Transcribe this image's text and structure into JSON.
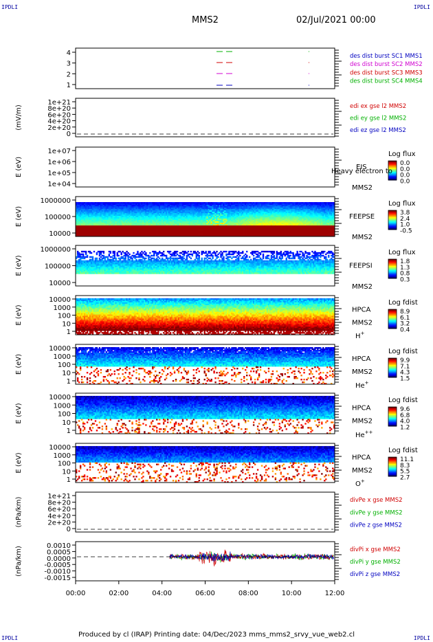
{
  "corners": {
    "tl": "IPDLI",
    "tr": "IPDLI",
    "bl": "IPDLI",
    "br": "IPDLI"
  },
  "header": {
    "title": "MMS2",
    "datetime": "02/Jul/2021 00:00"
  },
  "footer": {
    "text": "Produced by cl (IRAP)   Printing date: 04/Dec/2023   mms_mms2_srvy_vue_web2.cl"
  },
  "chart_data": {
    "type": "line",
    "x_range_hours": [
      0,
      12
    ],
    "x_ticks": [
      "00:00",
      "02:00",
      "04:00",
      "06:00",
      "08:00",
      "10:00",
      "12:00"
    ],
    "panels": [
      {
        "id": "burst",
        "type": "line",
        "ylabel": "",
        "yticks": [
          "4",
          "3",
          "2",
          "1"
        ],
        "legend": [
          {
            "text": "des dist burst SC1 MMS1",
            "color": "#0000c0"
          },
          {
            "text": "des dist burst SC2 MMS2",
            "color": "#d000d0"
          },
          {
            "text": "des dist burst SC3 MMS3",
            "color": "#d00000"
          },
          {
            "text": "des dist burst SC4 MMS4",
            "color": "#00b000"
          }
        ]
      },
      {
        "id": "edi",
        "type": "line",
        "ylabel": "(mV/m)",
        "yticks": [
          "1e+21",
          "8e+20",
          "6e+20",
          "4e+20",
          "2e+20",
          "0"
        ],
        "legend": [
          {
            "text": "edi ex gse l2 MMS2",
            "color": "#d00000"
          },
          {
            "text": "edi ey gse l2 MMS2",
            "color": "#00b000"
          },
          {
            "text": "edi ez gse l2 MMS2",
            "color": "#0000c0"
          }
        ]
      },
      {
        "id": "eis",
        "type": "heatmap",
        "ylabel": "E (eV)",
        "yticks": [
          "1e+07",
          "1e+06",
          "1e+05",
          "1e+04"
        ],
        "labels": [
          "EIS",
          "MMS2"
        ],
        "overlay_text": "Heavy electron to",
        "cb_title": "Log flux",
        "cb_ticks": [
          "0.0",
          "0.0",
          "0.0",
          "0.0"
        ]
      },
      {
        "id": "feepse",
        "type": "heatmap",
        "ylabel": "E (eV)",
        "yticks": [
          "1000000",
          "100000",
          "10000"
        ],
        "labels": [
          "FEEPSE",
          "MMS2"
        ],
        "cb_title": "Log flux",
        "cb_ticks": [
          "3.8",
          "2.4",
          "1.0",
          "-0.5"
        ]
      },
      {
        "id": "feepsi",
        "type": "heatmap",
        "ylabel": "E (eV)",
        "yticks": [
          "1000000",
          "100000",
          "10000"
        ],
        "labels": [
          "FEEPSI",
          "MMS2"
        ],
        "cb_title": "Log flux",
        "cb_ticks": [
          "1.8",
          "1.3",
          "0.8",
          "0.3"
        ]
      },
      {
        "id": "hpca_h",
        "type": "heatmap",
        "ylabel": "E (eV)",
        "yticks": [
          "10000",
          "1000",
          "100",
          "10",
          "1"
        ],
        "labels": [
          "HPCA",
          "MMS2"
        ],
        "species": "H",
        "sup": "+",
        "cb_title": "Log fdist",
        "cb_ticks": [
          "8.9",
          "6.1",
          "3.2",
          "0.4"
        ]
      },
      {
        "id": "hpca_he",
        "type": "heatmap",
        "ylabel": "E (eV)",
        "yticks": [
          "10000",
          "1000",
          "100",
          "10",
          "1"
        ],
        "labels": [
          "HPCA",
          "MMS2"
        ],
        "species": "He",
        "sup": "+",
        "cb_title": "Log fdist",
        "cb_ticks": [
          "9.9",
          "7.1",
          "4.3",
          "1.5"
        ]
      },
      {
        "id": "hpca_hepp",
        "type": "heatmap",
        "ylabel": "E (eV)",
        "yticks": [
          "10000",
          "1000",
          "100",
          "10",
          "1"
        ],
        "labels": [
          "HPCA",
          "MMS2"
        ],
        "species": "He",
        "sup": "++",
        "cb_title": "Log fdist",
        "cb_ticks": [
          "9.6",
          "6.8",
          "4.0",
          "1.2"
        ]
      },
      {
        "id": "hpca_o",
        "type": "heatmap",
        "ylabel": "E (eV)",
        "yticks": [
          "10000",
          "1000",
          "100",
          "10",
          "1"
        ],
        "labels": [
          "HPCA",
          "MMS2"
        ],
        "species": "O",
        "sup": "+",
        "cb_title": "Log fdist",
        "cb_ticks": [
          "11.1",
          "8.3",
          "5.5",
          "2.7"
        ]
      },
      {
        "id": "divpe",
        "type": "line",
        "ylabel": "(nPa/km)",
        "yticks": [
          "1e+21",
          "8e+20",
          "6e+20",
          "4e+20",
          "2e+20",
          "0"
        ],
        "legend": [
          {
            "text": "divPe x gse MMS2",
            "color": "#d00000"
          },
          {
            "text": "divPe y gse MMS2",
            "color": "#00b000"
          },
          {
            "text": "divPe z gse MMS2",
            "color": "#0000c0"
          }
        ]
      },
      {
        "id": "divpi",
        "type": "line",
        "ylabel": "(nPa/km)",
        "yticks": [
          "0.0010",
          "0.0005",
          "0.0000",
          "-0.0005",
          "-0.0010",
          "-0.0015"
        ],
        "legend": [
          {
            "text": "divPi x gse MMS2",
            "color": "#d00000"
          },
          {
            "text": "divPi y gse MMS2",
            "color": "#00b000"
          },
          {
            "text": "divPi z gse MMS2",
            "color": "#0000c0"
          }
        ]
      }
    ]
  }
}
